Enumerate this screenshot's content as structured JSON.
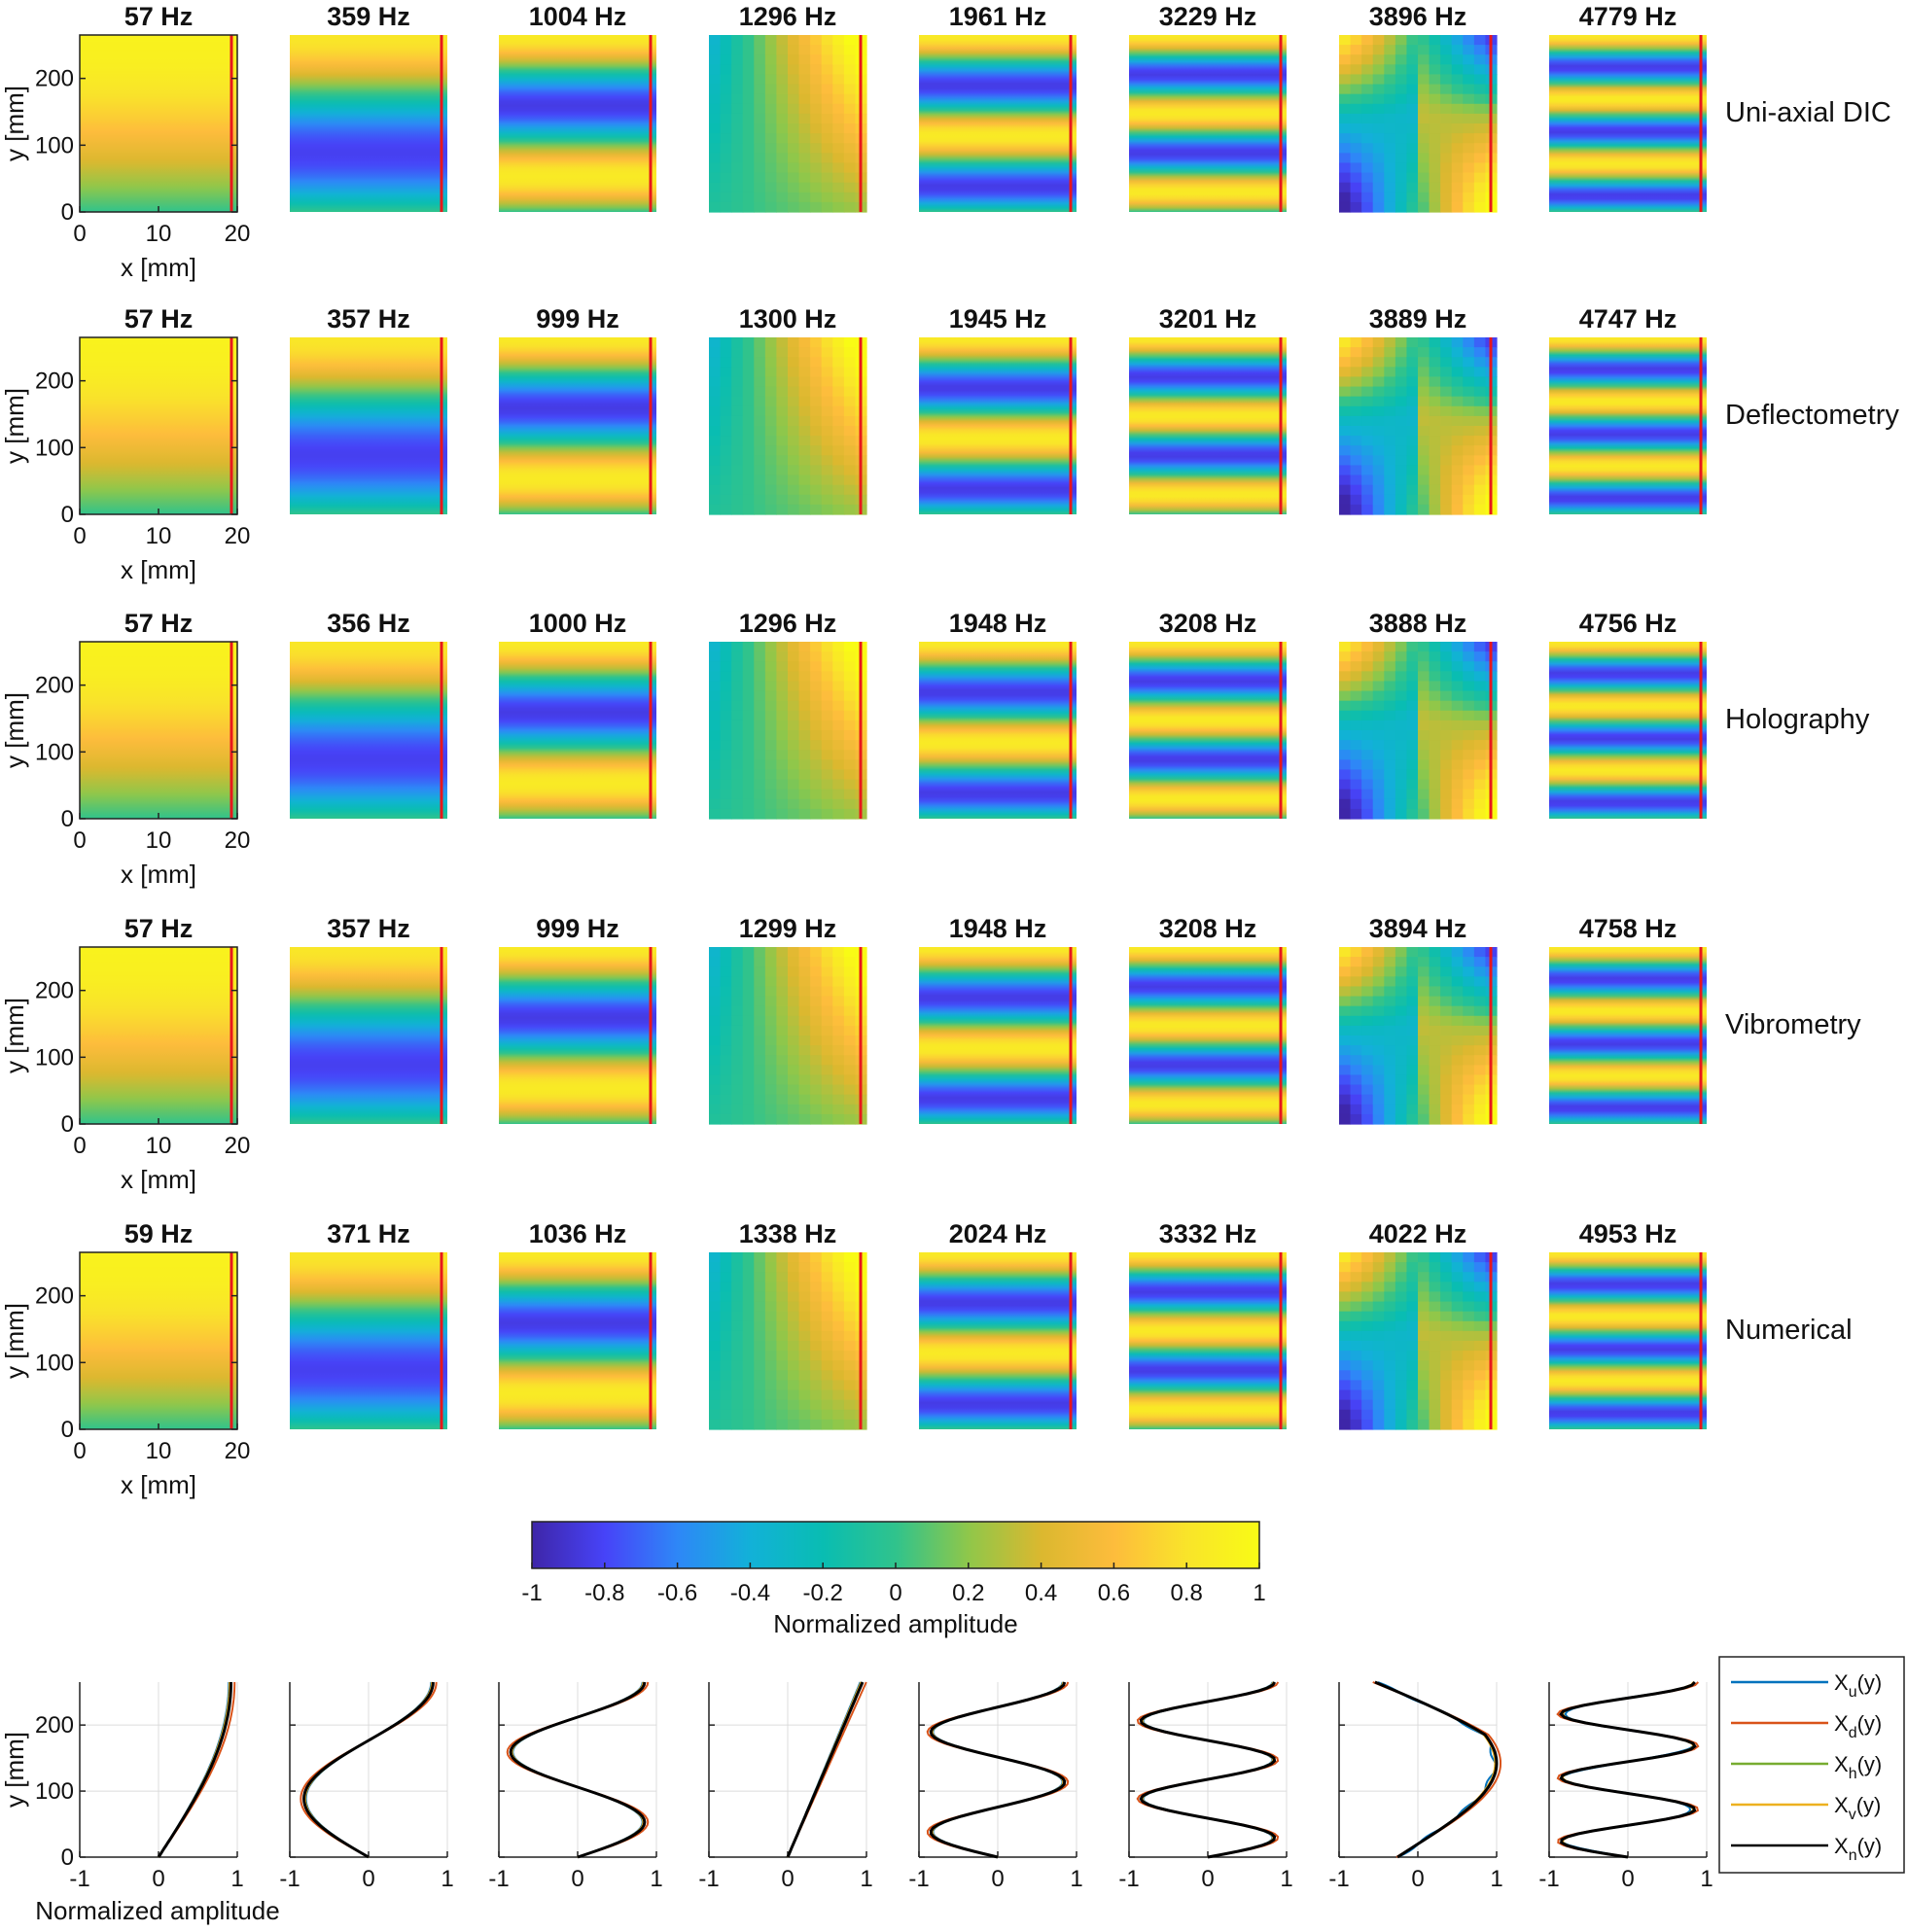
{
  "chart_data": {
    "type": "heatmap",
    "description_title": "",
    "rows": [
      {
        "label": "Uni-axial DIC",
        "frequencies": [
          "57 Hz",
          "359 Hz",
          "1004 Hz",
          "1296 Hz",
          "1961 Hz",
          "3229 Hz",
          "3896 Hz",
          "4779 Hz"
        ]
      },
      {
        "label": "Deflectometry",
        "frequencies": [
          "57 Hz",
          "357 Hz",
          "999 Hz",
          "1300 Hz",
          "1945 Hz",
          "3201 Hz",
          "3889 Hz",
          "4747 Hz"
        ]
      },
      {
        "label": "Holography",
        "frequencies": [
          "57 Hz",
          "356 Hz",
          "1000 Hz",
          "1296 Hz",
          "1948 Hz",
          "3208 Hz",
          "3888 Hz",
          "4756 Hz"
        ]
      },
      {
        "label": "Vibrometry",
        "frequencies": [
          "57 Hz",
          "357 Hz",
          "999 Hz",
          "1299 Hz",
          "1948 Hz",
          "3208 Hz",
          "3894 Hz",
          "4758 Hz"
        ]
      },
      {
        "label": "Numerical",
        "frequencies": [
          "59 Hz",
          "371 Hz",
          "1036 Hz",
          "1338 Hz",
          "2024 Hz",
          "3332 Hz",
          "4022 Hz",
          "4953 Hz"
        ]
      }
    ],
    "mode_shapes_y": [
      {
        "kind": "bend",
        "n": 0
      },
      {
        "kind": "bend",
        "n": 1
      },
      {
        "kind": "bend",
        "n": 2
      },
      {
        "kind": "torsion"
      },
      {
        "kind": "bend",
        "n": 3
      },
      {
        "kind": "bend",
        "n": 4
      },
      {
        "kind": "saddle"
      },
      {
        "kind": "bend",
        "n": 5
      }
    ],
    "x_axis": {
      "label": "x [mm]",
      "ticks": [
        "0",
        "10",
        "20"
      ],
      "range": [
        0,
        20
      ]
    },
    "y_axis": {
      "label": "y [mm]",
      "ticks": [
        "0",
        "100",
        "200"
      ],
      "range": [
        0,
        265
      ]
    },
    "colorbar": {
      "label": "Normalized amplitude",
      "range": [
        -1,
        1
      ],
      "ticks": [
        "-1",
        "-0.8",
        "-0.6",
        "-0.4",
        "-0.2",
        "0",
        "0.2",
        "0.4",
        "0.6",
        "0.8",
        "1"
      ],
      "colormap": [
        "#3e26a8",
        "#4743f8",
        "#2e87f7",
        "#12b1d8",
        "#09bdb2",
        "#30c38c",
        "#8fc74a",
        "#dbb82f",
        "#fdbc3c",
        "#f9e42a",
        "#f9fb15"
      ]
    },
    "line_profiles": {
      "x_label": "Normalized amplitude",
      "x_ticks": [
        "-1",
        "0",
        "1"
      ],
      "x_range": [
        -1,
        1
      ],
      "y_label": "y [mm]",
      "y_ticks": [
        "0",
        "100",
        "200"
      ],
      "y_range": [
        0,
        265
      ],
      "legend": [
        {
          "name": "X",
          "sub": "u",
          "tail": "(y)",
          "color": "#0072bd"
        },
        {
          "name": "X",
          "sub": "d",
          "tail": "(y)",
          "color": "#d95319"
        },
        {
          "name": "X",
          "sub": "h",
          "tail": "(y)",
          "color": "#77ac30"
        },
        {
          "name": "X",
          "sub": "v",
          "tail": "(y)",
          "color": "#edb120"
        },
        {
          "name": "X",
          "sub": "n",
          "tail": "(y)",
          "color": "#000000"
        }
      ],
      "series_offsets": [
        {
          "scale": 0.97,
          "shift": 0.02
        },
        {
          "scale": 1.05,
          "shift": 0.06
        },
        {
          "scale": 0.99,
          "shift": 0.03
        },
        {
          "scale": 0.98,
          "shift": 0.0
        },
        {
          "scale": 1.0,
          "shift": 0.0
        }
      ]
    },
    "marker_line_color": "#e8171b"
  }
}
